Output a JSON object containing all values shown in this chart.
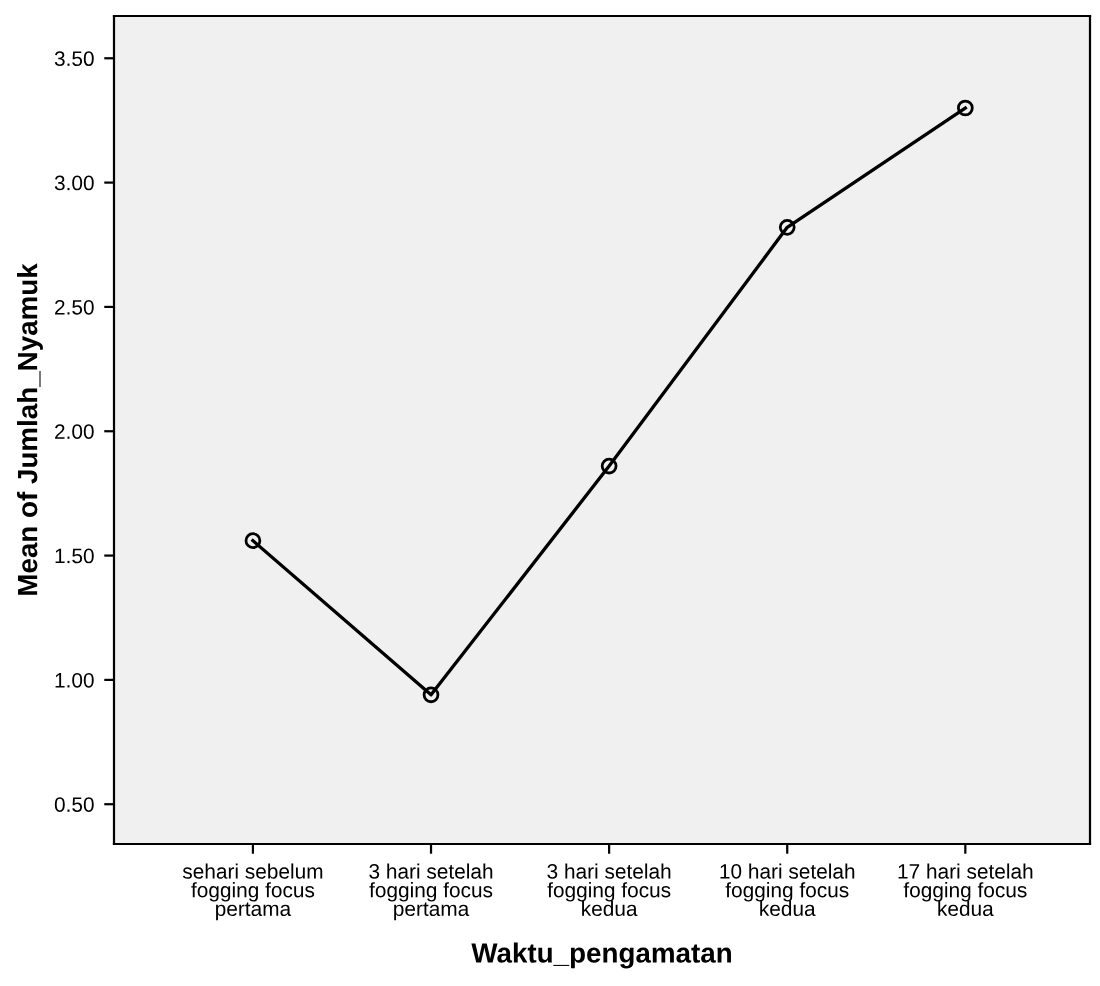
{
  "chart_data": {
    "type": "line",
    "xlabel": "Waktu_pengamatan",
    "ylabel": "Mean of Jumlah_Nyamuk",
    "categories": [
      "sehari sebelum\nfogging focus\npertama",
      "3 hari setelah\nfogging focus\npertama",
      "3 hari setelah\nfogging focus\nkedua",
      "10 hari setelah\nfogging focus\nkedua",
      "17 hari setelah\nfogging focus\nkedua"
    ],
    "series": [
      {
        "color": "#000000",
        "values": [
          1.56,
          0.94,
          1.86,
          2.82,
          3.3
        ]
      }
    ],
    "ylim": [
      0.34,
      3.67
    ],
    "yticks": [
      {
        "value": 0.5,
        "label": "0.50"
      },
      {
        "value": 1.0,
        "label": "1.00"
      },
      {
        "value": 1.5,
        "label": "1.50"
      },
      {
        "value": 2.0,
        "label": "2.00"
      },
      {
        "value": 2.5,
        "label": "2.50"
      },
      {
        "value": 3.0,
        "label": "3.00"
      },
      {
        "value": 3.5,
        "label": "3.50"
      }
    ],
    "marker": "circle",
    "line_style": "solid",
    "grid": false,
    "legend": false
  }
}
